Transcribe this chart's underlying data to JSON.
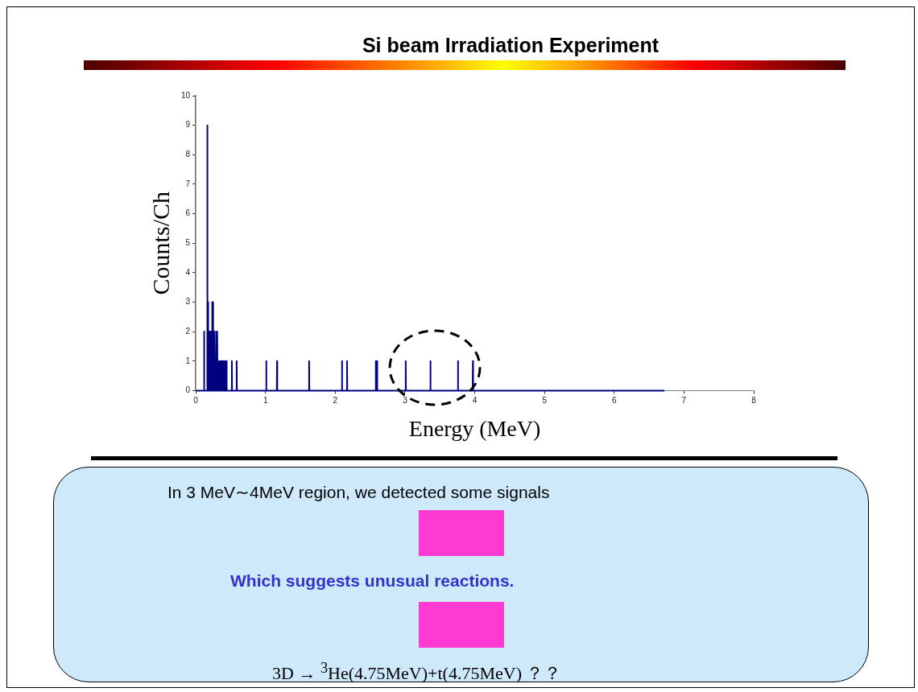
{
  "chart_data": {
    "type": "line",
    "title": "Si beam Irradiation Experiment",
    "xlabel": "Energy (MeV)",
    "ylabel": "Counts/Ch",
    "xlim": [
      0,
      8
    ],
    "xticks": [
      0,
      1,
      2,
      3,
      4,
      5,
      6,
      7,
      8
    ],
    "ylim": [
      0,
      10
    ],
    "yticks": [
      0,
      1,
      2,
      3,
      4,
      5,
      6,
      7,
      8,
      9,
      10
    ],
    "grid": false,
    "legend": false,
    "marker": "none",
    "line_style": "solid",
    "annotations": [
      "In 3 MeV∼4MeV region, we detected some signals",
      "Which suggests unusual reactions.",
      "3D → $^{3}$He(4.75MeV)+t(4.75MeV) ？？"
    ],
    "series": [
      {
        "color": "#000080",
        "x": [
          0,
          0.116,
          0.119,
          0.122,
          0.162,
          0.165,
          0.168,
          0.173,
          0.176,
          0.179,
          0.187,
          0.19,
          0.193,
          0.197,
          0.2,
          0.203,
          0.207,
          0.21,
          0.213,
          0.222,
          0.225,
          0.228,
          0.232,
          0.235,
          0.238,
          0.242,
          0.245,
          0.248,
          0.252,
          0.255,
          0.258,
          0.267,
          0.27,
          0.273,
          0.282,
          0.285,
          0.288,
          0.297,
          0.3,
          0.303,
          0.307,
          0.31,
          0.313,
          0.317,
          0.32,
          0.323,
          0.337,
          0.34,
          0.343,
          0.357,
          0.36,
          0.363,
          0.377,
          0.38,
          0.383,
          0.397,
          0.4,
          0.403,
          0.417,
          0.42,
          0.423,
          0.437,
          0.44,
          0.443,
          0.514,
          0.517,
          0.52,
          0.583,
          0.586,
          0.589,
          1.007,
          1.01,
          1.013,
          1.162,
          1.165,
          1.168,
          1.622,
          1.625,
          1.628,
          2.093,
          2.096,
          2.099,
          2.166,
          2.169,
          2.172,
          2.579,
          2.582,
          2.585,
          2.597,
          2.6,
          2.603,
          3.007,
          3.01,
          3.013,
          3.361,
          3.364,
          3.367,
          3.756,
          3.759,
          3.762,
          3.97,
          3.973,
          3.976,
          6.72
        ],
        "values": [
          0,
          0,
          2,
          0,
          0,
          9,
          0,
          0,
          3,
          0,
          0,
          2,
          0,
          0,
          1,
          0,
          0,
          2,
          0,
          0,
          2,
          0,
          0,
          3,
          0,
          0,
          3,
          0,
          0,
          2,
          0,
          0,
          2,
          0,
          0,
          1,
          0,
          0,
          2,
          0,
          0,
          2,
          0,
          0,
          1,
          0,
          0,
          1,
          0,
          0,
          1,
          0,
          0,
          1,
          0,
          0,
          1,
          0,
          0,
          1,
          0,
          0,
          1,
          0,
          0,
          1,
          0,
          0,
          1,
          0,
          0,
          1,
          0,
          0,
          1,
          0,
          0,
          1,
          0,
          0,
          1,
          0,
          0,
          1,
          0,
          0,
          1,
          0,
          0,
          1,
          0,
          0,
          1,
          0,
          0,
          1,
          0,
          0,
          1,
          0,
          0,
          1,
          0,
          0
        ]
      }
    ]
  }
}
